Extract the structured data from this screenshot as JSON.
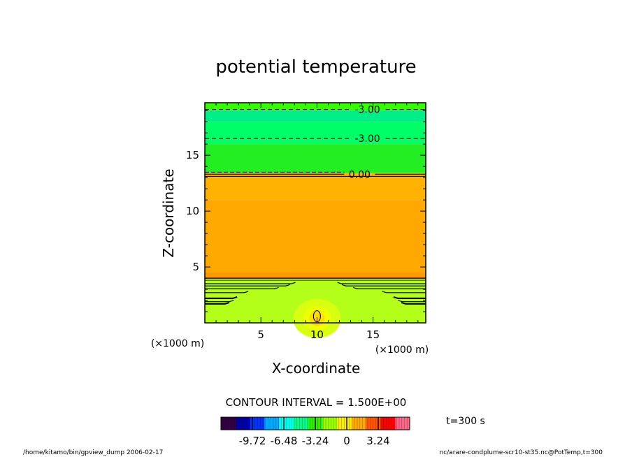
{
  "chart_data": {
    "type": "heatmap",
    "title": "potential temperature",
    "xlabel": "X-coordinate",
    "ylabel": "Z-coordinate",
    "x_unit_label": "(×1000 m)",
    "z_unit_label": "(×1000 m)",
    "x_ticks": [
      "5",
      "10",
      "15"
    ],
    "x_tick_values": [
      5,
      10,
      15
    ],
    "z_ticks": [
      "5",
      "10",
      "15"
    ],
    "z_tick_values": [
      5,
      10,
      15
    ],
    "xlim": [
      0,
      19.7
    ],
    "zlim": [
      0,
      19.7
    ],
    "contour_interval_text": "CONTOUR INTERVAL = 1.500E+00",
    "contour_labels": [
      {
        "text": "-3.00",
        "x": 14.5,
        "z": 19.1
      },
      {
        "text": "-3.00",
        "x": 14.5,
        "z": 16.5
      },
      {
        "text": "0.00",
        "x": 13.8,
        "z": 13.3
      }
    ],
    "layers": [
      {
        "z0": 19.0,
        "z1": 19.7,
        "color": "#33ff00"
      },
      {
        "z0": 18.0,
        "z1": 19.0,
        "color": "#00ee88"
      },
      {
        "z0": 16.0,
        "z1": 18.0,
        "color": "#00ff66"
      },
      {
        "z0": 13.4,
        "z1": 16.0,
        "color": "#22ee22"
      },
      {
        "z0": 11.0,
        "z1": 13.4,
        "color": "#ffb300"
      },
      {
        "z0": 4.5,
        "z1": 11.0,
        "color": "#ffa800"
      },
      {
        "z0": 4.0,
        "z1": 4.5,
        "color": "#ff9900"
      },
      {
        "z0": 0.0,
        "z1": 4.0,
        "color": "#b3ff1a"
      }
    ],
    "plume": {
      "x": 10,
      "z": 0.4,
      "max_label": ""
    },
    "colorbar": {
      "tick_labels": [
        "-9.72",
        "-6.48",
        "-3.24",
        "0",
        "3.24"
      ],
      "tick_values": [
        -9.72,
        -6.48,
        -3.24,
        0,
        3.24
      ],
      "range": [
        -12.96,
        6.48
      ],
      "colors": [
        "#330044",
        "#0000aa",
        "#0033ff",
        "#00aaff",
        "#00ffee",
        "#00ff88",
        "#33ee00",
        "#99ff00",
        "#ffee00",
        "#ffaa00",
        "#ff5500",
        "#ff0000",
        "#ff6688"
      ]
    }
  },
  "time_label": "t=300 s",
  "footer_left": "/home/kitamo/bin/gpview_dump  2006-02-17",
  "footer_right": "nc/arare-condplume-scr10-st35.nc@PotTemp,t=300"
}
